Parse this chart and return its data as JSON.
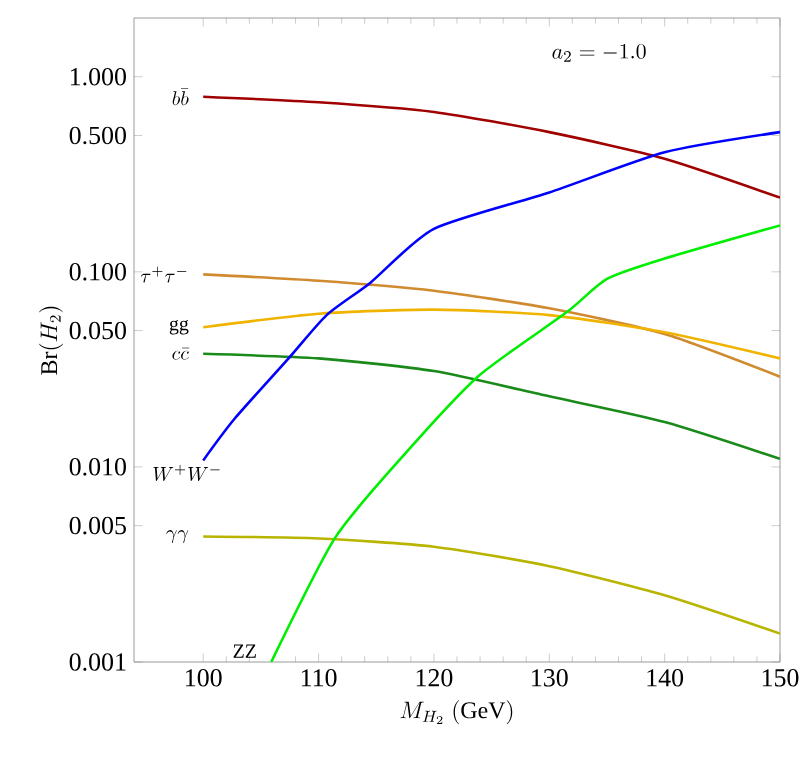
{
  "chart_data": {
    "type": "line",
    "xlabel": "M_{H_2}\\ (\\mathrm{GeV})",
    "ylabel": "\\mathrm{Br}(H_2)",
    "annotations": [
      "a_2 = -1.0"
    ],
    "log": "y",
    "xlim": [
      94,
      150
    ],
    "ylim": [
      0.001,
      2.0
    ],
    "xticks": [
      100,
      110,
      120,
      130,
      140,
      150
    ],
    "yticks": [
      {
        "value": 0.001,
        "label": "0.001"
      },
      {
        "value": 0.005,
        "label": "0.005"
      },
      {
        "value": 0.01,
        "label": "0.010"
      },
      {
        "value": 0.05,
        "label": "0.050"
      },
      {
        "value": 0.1,
        "label": "0.100"
      },
      {
        "value": 0.5,
        "label": "0.500"
      },
      {
        "value": 1,
        "label": "1.000"
      }
    ],
    "grid": false,
    "legend": false,
    "marker": "none",
    "line_style": "solid",
    "series": [
      {
        "name": "b\\bar{b}",
        "color": "#a00000",
        "x": [
          100,
          110,
          120,
          130,
          140,
          150
        ],
        "values": [
          0.79,
          0.74,
          0.66,
          0.52,
          0.38,
          0.24
        ]
      },
      {
        "name": "\\tau^+\\tau^-",
        "color": "#d08a30",
        "x": [
          100,
          110,
          120,
          130,
          140,
          150
        ],
        "values": [
          0.097,
          0.09,
          0.08,
          0.065,
          0.048,
          0.029
        ]
      },
      {
        "name": "\\mathrm{gg}",
        "color": "#f0b400",
        "x": [
          100,
          110,
          120,
          130,
          140,
          150
        ],
        "values": [
          0.052,
          0.061,
          0.064,
          0.06,
          0.049,
          0.036
        ]
      },
      {
        "name": "c\\bar{c}",
        "color": "#1a8a1a",
        "x": [
          100,
          110,
          120,
          130,
          140,
          150
        ],
        "values": [
          0.038,
          0.036,
          0.031,
          0.023,
          0.017,
          0.011
        ]
      },
      {
        "name": "W^+W^-",
        "color": "#0000ff",
        "x": [
          100,
          102.7,
          107.4,
          110.7,
          114.5,
          120,
          130,
          140,
          150
        ],
        "values": [
          0.0108,
          0.0176,
          0.036,
          0.06,
          0.088,
          0.166,
          0.255,
          0.41,
          0.52
        ]
      },
      {
        "name": "\\gamma\\gamma",
        "color": "#b8b400",
        "x": [
          100,
          110,
          120,
          130,
          140,
          150
        ],
        "values": [
          0.0044,
          0.0043,
          0.0039,
          0.0031,
          0.0022,
          0.0014
        ]
      },
      {
        "name": "\\mathrm{ZZ}",
        "color": "#00ee00",
        "x": [
          105.9,
          111.4,
          117.1,
          123.8,
          131.5,
          135,
          140,
          150
        ],
        "values": [
          0.001,
          0.0043,
          0.011,
          0.029,
          0.062,
          0.092,
          0.117,
          0.173
        ]
      }
    ]
  }
}
